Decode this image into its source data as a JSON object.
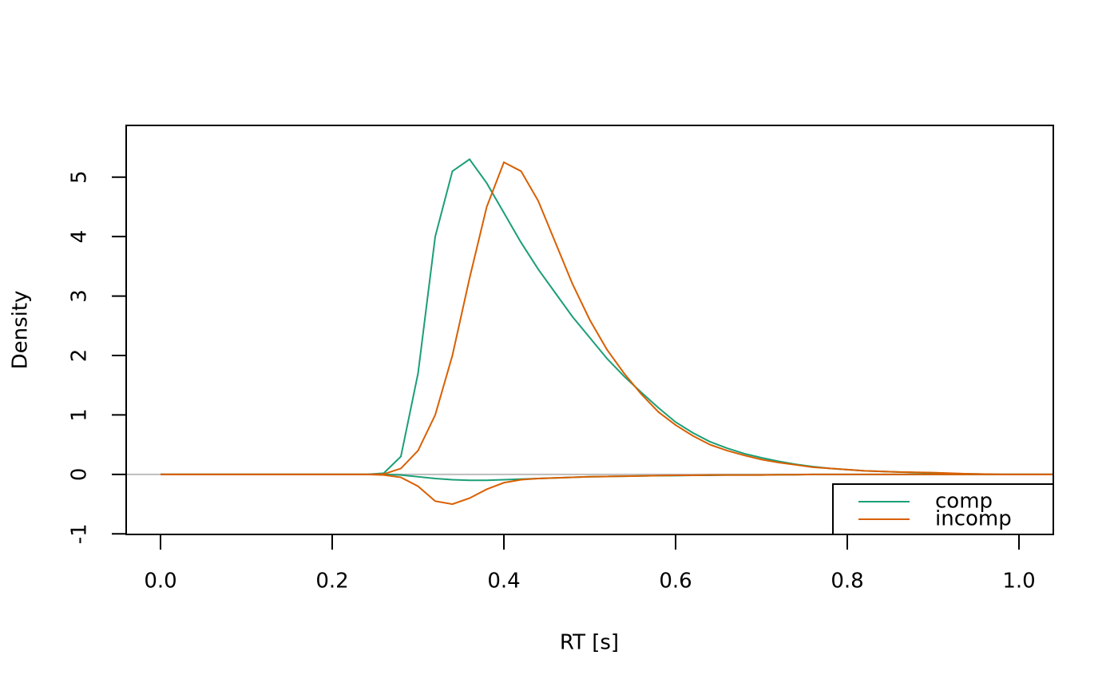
{
  "chart_data": {
    "type": "line",
    "x_label": "RT [s]",
    "y_label": "Density",
    "x": [
      0,
      0.02,
      0.04,
      0.06,
      0.08,
      0.1,
      0.12,
      0.14,
      0.16,
      0.18,
      0.2,
      0.22,
      0.24,
      0.26,
      0.28,
      0.3,
      0.32,
      0.34,
      0.36,
      0.38,
      0.4,
      0.42,
      0.44,
      0.46,
      0.48,
      0.5,
      0.52,
      0.54,
      0.56,
      0.58,
      0.6,
      0.62,
      0.64,
      0.66,
      0.68,
      0.7,
      0.72,
      0.74,
      0.76,
      0.78,
      0.8,
      0.82,
      0.84,
      0.86,
      0.88,
      0.9,
      0.92,
      0.94,
      0.96,
      0.98,
      1,
      1.02,
      1.04
    ],
    "series": [
      {
        "name": "comp",
        "color": "#1b9e77",
        "values": [
          0,
          0,
          0,
          0,
          0,
          0,
          0,
          0,
          0,
          0,
          0,
          0,
          0,
          0.02,
          0.3,
          1.7,
          4.0,
          5.1,
          5.3,
          4.9,
          4.4,
          3.9,
          3.45,
          3.05,
          2.65,
          2.3,
          1.95,
          1.65,
          1.38,
          1.12,
          0.88,
          0.7,
          0.55,
          0.44,
          0.35,
          0.28,
          0.22,
          0.17,
          0.13,
          0.1,
          0.08,
          0.06,
          0.05,
          0.04,
          0.03,
          0.02,
          0.015,
          0.01,
          0.005,
          0,
          0,
          0,
          0
        ],
        "error_values": [
          0,
          0,
          0,
          0,
          0,
          0,
          0,
          0,
          0,
          0,
          0,
          0,
          0,
          0,
          -0.01,
          -0.04,
          -0.07,
          -0.09,
          -0.1,
          -0.1,
          -0.09,
          -0.08,
          -0.07,
          -0.06,
          -0.05,
          -0.04,
          -0.035,
          -0.03,
          -0.025,
          -0.02,
          -0.02,
          -0.015,
          -0.015,
          -0.01,
          -0.01,
          -0.01,
          -0.005,
          -0.005,
          0,
          0,
          0,
          0,
          0,
          0,
          0,
          0,
          0,
          0,
          0,
          0,
          0,
          0,
          0
        ]
      },
      {
        "name": "incomp",
        "color": "#d95f02",
        "values": [
          0,
          0,
          0,
          0,
          0,
          0,
          0,
          0,
          0,
          0,
          0,
          0,
          0,
          0.005,
          0.1,
          0.4,
          1.0,
          2.0,
          3.3,
          4.5,
          5.25,
          5.1,
          4.6,
          3.9,
          3.2,
          2.6,
          2.1,
          1.7,
          1.35,
          1.05,
          0.83,
          0.65,
          0.5,
          0.4,
          0.32,
          0.25,
          0.2,
          0.16,
          0.12,
          0.1,
          0.08,
          0.06,
          0.05,
          0.04,
          0.035,
          0.03,
          0.02,
          0.01,
          0.005,
          0,
          0,
          0,
          0
        ],
        "error_values": [
          0,
          0,
          0,
          0,
          0,
          0,
          0,
          0,
          0,
          0,
          0,
          0,
          0,
          -0.01,
          -0.05,
          -0.2,
          -0.45,
          -0.5,
          -0.4,
          -0.25,
          -0.14,
          -0.09,
          -0.07,
          -0.06,
          -0.05,
          -0.04,
          -0.035,
          -0.03,
          -0.025,
          -0.02,
          -0.015,
          -0.015,
          -0.01,
          -0.01,
          -0.01,
          -0.01,
          -0.005,
          -0.005,
          0,
          0,
          0,
          0,
          0,
          0,
          0,
          0,
          0,
          0,
          0,
          0,
          0,
          0,
          0
        ]
      }
    ],
    "xlim": [
      -0.04,
      1.04
    ],
    "ylim": [
      -1.01,
      5.87
    ],
    "xticks": [
      {
        "value": 0,
        "label": "0.0"
      },
      0.2,
      0.4,
      0.6,
      0.8,
      {
        "value": 1,
        "label": "1.0"
      }
    ],
    "yticks": [
      -1,
      0,
      1,
      2,
      3,
      4,
      5
    ],
    "legend": "bottomright"
  }
}
